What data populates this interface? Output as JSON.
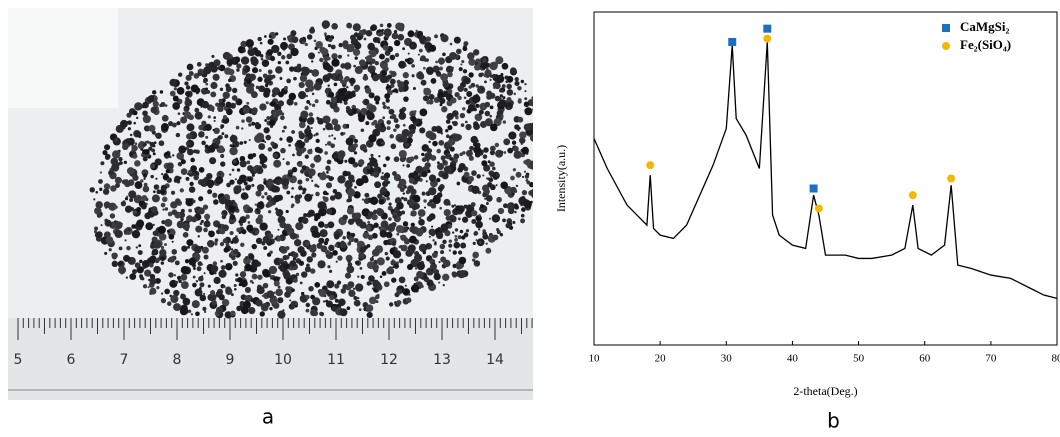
{
  "panel_a": {
    "label": "a",
    "ruler_labels": [
      5,
      6,
      7,
      8,
      9,
      10,
      11,
      12,
      13,
      14
    ]
  },
  "chart_data": {
    "type": "line",
    "panel_label": "b",
    "x_label": "2-theta(Deg.)",
    "y_label": "Intensity(a.u.)",
    "xlim": [
      10,
      80
    ],
    "ylim": [
      0,
      100
    ],
    "xticks": [
      10,
      20,
      30,
      40,
      50,
      60,
      70,
      80
    ],
    "series": [
      {
        "color": "#000000",
        "x": [
          10,
          12,
          15,
          18,
          18.5,
          19,
          20,
          22,
          24,
          26,
          28,
          30,
          30.9,
          31.5,
          33,
          35,
          36.2,
          37,
          38,
          40,
          42,
          43.2,
          44,
          45,
          48,
          50,
          52,
          55,
          57,
          58.2,
          59,
          61,
          63,
          64,
          65,
          67,
          70,
          73,
          76,
          78,
          80
        ],
        "values": [
          62,
          53,
          42,
          36,
          51,
          35,
          33,
          32,
          36,
          45,
          54,
          65,
          90,
          68,
          63,
          53,
          91,
          39,
          33,
          30,
          29,
          45,
          39,
          27,
          27,
          26,
          26,
          27,
          29,
          42,
          29,
          27,
          30,
          48,
          24,
          23,
          21,
          20,
          17,
          15,
          14
        ]
      }
    ],
    "markers": [
      {
        "name": "CaMgSi₂",
        "color": "#1f6fbf",
        "shape": "square",
        "x": [
          30.9,
          36.2,
          43.2
        ],
        "values": [
          91,
          95,
          47
        ]
      },
      {
        "name": "Fe₂(SiO₄)",
        "color": "#f5b800",
        "shape": "circle",
        "x": [
          18.5,
          36.2,
          44,
          58.2,
          64
        ],
        "values": [
          54,
          92,
          41,
          45,
          50
        ]
      }
    ]
  }
}
